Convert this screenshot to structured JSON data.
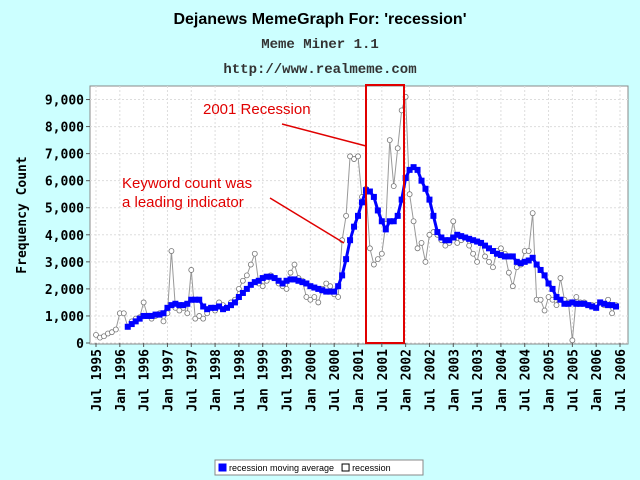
{
  "chart_data": {
    "type": "line",
    "title": "Dejanews MemeGraph For: 'recession'",
    "subtitle": "Meme Miner 1.1",
    "url": "http://www.realmeme.com",
    "ylabel": "Frequency Count",
    "annotations": [
      "2001 Recession",
      "Keyword count was",
      "a leading indicator"
    ],
    "categories": [
      "Jul 1995",
      null,
      null,
      null,
      null,
      null,
      "Jan 1996",
      null,
      null,
      null,
      null,
      null,
      "Jul 1996",
      null,
      null,
      null,
      null,
      null,
      "Jan 1997",
      null,
      null,
      null,
      null,
      null,
      "Jul 1997",
      null,
      null,
      null,
      null,
      null,
      "Jan 1998",
      null,
      null,
      null,
      null,
      null,
      "Jul 1998",
      null,
      null,
      null,
      null,
      null,
      "Jan 1999",
      null,
      null,
      null,
      null,
      null,
      "Jul 1999",
      null,
      null,
      null,
      null,
      null,
      "Jan 2000",
      null,
      null,
      null,
      null,
      null,
      "Jul 2000",
      null,
      null,
      null,
      null,
      null,
      "Jan 2001",
      null,
      null,
      null,
      null,
      null,
      "Jul 2001",
      null,
      null,
      null,
      null,
      null,
      "Jan 2002",
      null,
      null,
      null,
      null,
      null,
      "Jul 2002",
      null,
      null,
      null,
      null,
      null,
      "Jan 2003",
      null,
      null,
      null,
      null,
      null,
      "Jul 2003",
      null,
      null,
      null,
      null,
      null,
      "Jan 2004",
      null,
      null,
      null,
      null,
      null,
      "Jul 2004",
      null,
      null,
      null,
      null,
      null,
      "Jan 2005",
      null,
      null,
      null,
      null,
      null,
      "Jul 2005",
      null,
      null,
      null,
      null,
      null,
      "Jan 2006",
      null,
      null,
      null,
      null,
      null,
      "Jul 2006"
    ],
    "series": [
      {
        "name": "recession moving average",
        "color": "#0000ff",
        "values": [
          null,
          null,
          null,
          null,
          null,
          null,
          null,
          null,
          600,
          700,
          800,
          900,
          1000,
          1000,
          1000,
          1050,
          1050,
          1100,
          1300,
          1400,
          1450,
          1400,
          1400,
          1450,
          1600,
          1600,
          1600,
          1350,
          1250,
          1300,
          1300,
          1350,
          1250,
          1300,
          1400,
          1500,
          1700,
          1850,
          2000,
          2150,
          2250,
          2300,
          2400,
          2450,
          2450,
          2400,
          2300,
          2200,
          2300,
          2350,
          2350,
          2300,
          2250,
          2200,
          2100,
          2050,
          2000,
          1950,
          1900,
          1900,
          1900,
          2100,
          2500,
          3100,
          3800,
          4300,
          4700,
          5200,
          5650,
          5600,
          5400,
          4900,
          4500,
          4200,
          4500,
          4500,
          4700,
          5300,
          6100,
          6400,
          6500,
          6400,
          6000,
          5700,
          5300,
          4700,
          4100,
          3900,
          3800,
          3800,
          3900,
          4000,
          3950,
          3900,
          3850,
          3800,
          3750,
          3700,
          3600,
          3500,
          3400,
          3300,
          3250,
          3200,
          3200,
          3200,
          3000,
          2950,
          3000,
          3050,
          3150,
          2900,
          2700,
          2500,
          2200,
          2000,
          1700,
          1600,
          1450,
          1450,
          1500,
          1450,
          1450,
          1450,
          1400,
          1350,
          1300,
          1500,
          1450,
          1400,
          1400,
          1350,
          null
        ]
      },
      {
        "name": "recession",
        "color": "#999999",
        "values": [
          300,
          200,
          250,
          350,
          400,
          500,
          1100,
          1100,
          600,
          800,
          900,
          950,
          1500,
          1000,
          900,
          1000,
          1100,
          800,
          1100,
          3400,
          1300,
          1200,
          1300,
          1100,
          2700,
          900,
          1000,
          900,
          1100,
          1300,
          1200,
          1500,
          1400,
          1300,
          1500,
          1600,
          2000,
          2300,
          2500,
          2900,
          3300,
          2200,
          2100,
          2300,
          2500,
          2400,
          2200,
          2100,
          2000,
          2600,
          2900,
          2400,
          2300,
          1700,
          1600,
          1700,
          1500,
          2000,
          2200,
          2100,
          1800,
          1700,
          3800,
          4700,
          6900,
          6800,
          6900,
          5400,
          5700,
          3500,
          2900,
          3100,
          3300,
          4400,
          7500,
          5800,
          7200,
          8600,
          9100,
          5500,
          4500,
          3500,
          3700,
          3000,
          4000,
          4100,
          4000,
          3800,
          3600,
          3700,
          4500,
          3700,
          3800,
          3900,
          3600,
          3300,
          3000,
          3700,
          3200,
          3000,
          2800,
          3400,
          3500,
          3300,
          2600,
          2100,
          2800,
          2900,
          3400,
          3400,
          4800,
          1600,
          1600,
          1200,
          1700,
          1600,
          1400,
          2400,
          1600,
          1500,
          100,
          1700,
          1500,
          1500,
          1400,
          1400,
          1400,
          1500,
          1400,
          1600,
          1100,
          1400,
          null
        ]
      }
    ],
    "ylim": [
      0,
      9500
    ],
    "yticks": [
      0,
      {
        "value": 1000,
        "label": "1,000"
      },
      {
        "value": 2000,
        "label": "2,000"
      },
      {
        "value": 3000,
        "label": "3,000"
      },
      {
        "value": 4000,
        "label": "4,000"
      },
      {
        "value": 5000,
        "label": "5,000"
      },
      {
        "value": 6000,
        "label": "6,000"
      },
      {
        "value": 7000,
        "label": "7,000"
      },
      {
        "value": 8000,
        "label": "8,000"
      },
      {
        "value": 9000,
        "label": "9,000"
      }
    ],
    "grid": true,
    "legend": "bottom"
  }
}
